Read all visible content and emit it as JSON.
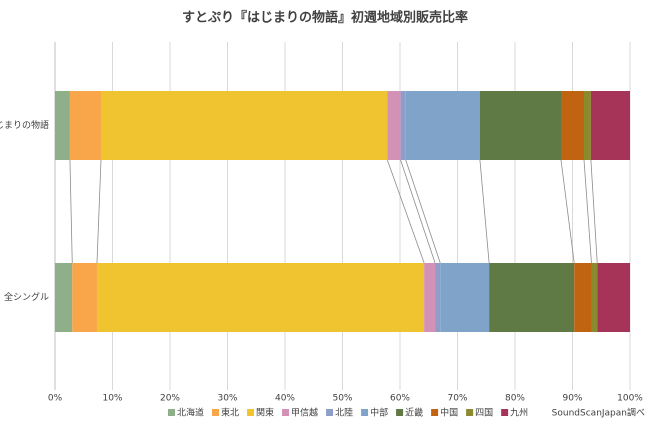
{
  "chart_data": {
    "type": "stacked-bar-horizontal",
    "title": "すとぷり『はじまりの物語』初週地域別販売比率",
    "categories": [
      "はじまりの物語",
      "全シングル"
    ],
    "series": [
      {
        "name": "北海道",
        "color": "#8fae8a",
        "values": [
          2.6,
          3.0
        ]
      },
      {
        "name": "東北",
        "color": "#f9a64a",
        "values": [
          5.4,
          4.3
        ]
      },
      {
        "name": "関東",
        "color": "#f0c431",
        "values": [
          49.8,
          56.9
        ]
      },
      {
        "name": "甲信越",
        "color": "#d291b5",
        "values": [
          2.3,
          1.9
        ]
      },
      {
        "name": "北陸",
        "color": "#8e9ec9",
        "values": [
          0.9,
          0.9
        ]
      },
      {
        "name": "中部",
        "color": "#7fa3c9",
        "values": [
          12.9,
          8.5
        ]
      },
      {
        "name": "近畿",
        "color": "#5f7a45",
        "values": [
          14.1,
          14.8
        ]
      },
      {
        "name": "中国",
        "color": "#c06412",
        "values": [
          4.0,
          3.0
        ]
      },
      {
        "name": "四国",
        "color": "#8a8a2e",
        "values": [
          1.2,
          1.0
        ]
      },
      {
        "name": "九州",
        "color": "#a63458",
        "values": [
          6.8,
          5.7
        ]
      }
    ],
    "xlim": [
      0,
      100
    ],
    "xticks": [
      {
        "value": 0,
        "label": "0%"
      },
      {
        "value": 10,
        "label": "10%"
      },
      {
        "value": 20,
        "label": "20%"
      },
      {
        "value": 30,
        "label": "30%"
      },
      {
        "value": 40,
        "label": "40%"
      },
      {
        "value": 50,
        "label": "50%"
      },
      {
        "value": 60,
        "label": "60%"
      },
      {
        "value": 70,
        "label": "70%"
      },
      {
        "value": 80,
        "label": "80%"
      },
      {
        "value": 90,
        "label": "90%"
      },
      {
        "value": 100,
        "label": "100%"
      }
    ],
    "grid": true,
    "annotation": "SoundScanJapan調べ"
  }
}
